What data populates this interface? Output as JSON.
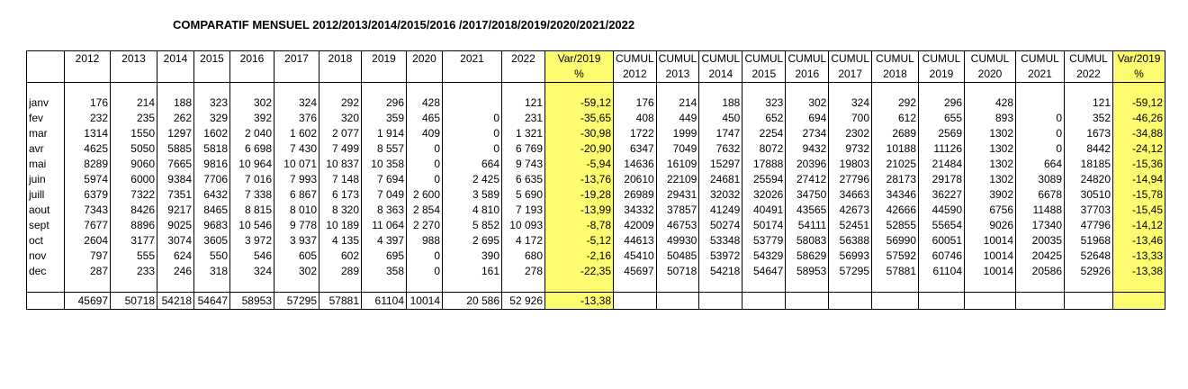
{
  "title": "COMPARATIF MENSUEL 2012/2013/2014/2015/2016 /2017/2018/2019/2020/2021/2022",
  "header_top": [
    "",
    "2012",
    "2013",
    "2014",
    "2015",
    "2016",
    "2017",
    "2018",
    "2019",
    "2020",
    "2021",
    "2022",
    "Var/2019",
    "CUMUL",
    "CUMUL",
    "CUMUL",
    "CUMUL",
    "CUMUL",
    "CUMUL",
    "CUMUL",
    "CUMUL",
    "CUMUL",
    "CUMUL",
    "CUMUL",
    "Var/2019"
  ],
  "header_bottom": [
    "",
    "",
    "",
    "",
    "",
    "",
    "",
    "",
    "",
    "",
    "",
    "",
    "%",
    "2012",
    "2013",
    "2014",
    "2015",
    "2016",
    "2017",
    "2018",
    "2019",
    "2020",
    "2021",
    "2022",
    "%"
  ],
  "rows": [
    [
      "janv",
      "176",
      "214",
      "188",
      "323",
      "302",
      "324",
      "292",
      "296",
      "428",
      "",
      "121",
      "-59,12",
      "176",
      "214",
      "188",
      "323",
      "302",
      "324",
      "292",
      "296",
      "428",
      "",
      "121",
      "-59,12"
    ],
    [
      "fev",
      "232",
      "235",
      "262",
      "329",
      "392",
      "376",
      "320",
      "359",
      "465",
      "0",
      "231",
      "-35,65",
      "408",
      "449",
      "450",
      "652",
      "694",
      "700",
      "612",
      "655",
      "893",
      "0",
      "352",
      "-46,26"
    ],
    [
      "mar",
      "1314",
      "1550",
      "1297",
      "1602",
      "2 040",
      "1 602",
      "2 077",
      "1 914",
      "409",
      "0",
      "1 321",
      "-30,98",
      "1722",
      "1999",
      "1747",
      "2254",
      "2734",
      "2302",
      "2689",
      "2569",
      "1302",
      "0",
      "1673",
      "-34,88"
    ],
    [
      "avr",
      "4625",
      "5050",
      "5885",
      "5818",
      "6 698",
      "7 430",
      "7 499",
      "8 557",
      "0",
      "0",
      "6 769",
      "-20,90",
      "6347",
      "7049",
      "7632",
      "8072",
      "9432",
      "9732",
      "10188",
      "11126",
      "1302",
      "0",
      "8442",
      "-24,12"
    ],
    [
      "mai",
      "8289",
      "9060",
      "7665",
      "9816",
      "10 964",
      "10 071",
      "10 837",
      "10 358",
      "0",
      "664",
      "9 743",
      "-5,94",
      "14636",
      "16109",
      "15297",
      "17888",
      "20396",
      "19803",
      "21025",
      "21484",
      "1302",
      "664",
      "18185",
      "-15,36"
    ],
    [
      "juin",
      "5974",
      "6000",
      "9384",
      "7706",
      "7 016",
      "7 993",
      "7 148",
      "7 694",
      "0",
      "2 425",
      "6 635",
      "-13,76",
      "20610",
      "22109",
      "24681",
      "25594",
      "27412",
      "27796",
      "28173",
      "29178",
      "1302",
      "3089",
      "24820",
      "-14,94"
    ],
    [
      "juill",
      "6379",
      "7322",
      "7351",
      "6432",
      "7 338",
      "6 867",
      "6 173",
      "7 049",
      "2 600",
      "3 589",
      "5 690",
      "-19,28",
      "26989",
      "29431",
      "32032",
      "32026",
      "34750",
      "34663",
      "34346",
      "36227",
      "3902",
      "6678",
      "30510",
      "-15,78"
    ],
    [
      "aout",
      "7343",
      "8426",
      "9217",
      "8465",
      "8 815",
      "8 010",
      "8 320",
      "8 363",
      "2 854",
      "4 810",
      "7 193",
      "-13,99",
      "34332",
      "37857",
      "41249",
      "40491",
      "43565",
      "42673",
      "42666",
      "44590",
      "6756",
      "11488",
      "37703",
      "-15,45"
    ],
    [
      "sept",
      "7677",
      "8896",
      "9025",
      "9683",
      "10 546",
      "9 778",
      "10 189",
      "11 064",
      "2 270",
      "5 852",
      "10 093",
      "-8,78",
      "42009",
      "46753",
      "50274",
      "50174",
      "54111",
      "52451",
      "52855",
      "55654",
      "9026",
      "17340",
      "47796",
      "-14,12"
    ],
    [
      "oct",
      "2604",
      "3177",
      "3074",
      "3605",
      "3 972",
      "3 937",
      "4 135",
      "4 397",
      "988",
      "2 695",
      "4 172",
      "-5,12",
      "44613",
      "49930",
      "53348",
      "53779",
      "58083",
      "56388",
      "56990",
      "60051",
      "10014",
      "20035",
      "51968",
      "-13,46"
    ],
    [
      "nov",
      "797",
      "555",
      "624",
      "550",
      "546",
      "605",
      "602",
      "695",
      "0",
      "390",
      "680",
      "-2,16",
      "45410",
      "50485",
      "53972",
      "54329",
      "58629",
      "56993",
      "57592",
      "60746",
      "10014",
      "20425",
      "52648",
      "-13,33"
    ],
    [
      "dec",
      "287",
      "233",
      "246",
      "318",
      "324",
      "302",
      "289",
      "358",
      "0",
      "161",
      "278",
      "-22,35",
      "45697",
      "50718",
      "54218",
      "54647",
      "58953",
      "57295",
      "57881",
      "61104",
      "10014",
      "20586",
      "52926",
      "-13,38"
    ]
  ],
  "totals": [
    "",
    "45697",
    "50718",
    "54218",
    "54647",
    "58953",
    "57295",
    "57881",
    "61104",
    "10014",
    "20 586",
    "52 926",
    "-13,38",
    "",
    "",
    "",
    "",
    "",
    "",
    "",
    "",
    "",
    "",
    "",
    ""
  ],
  "highlight_color": "#fdfb6f"
}
